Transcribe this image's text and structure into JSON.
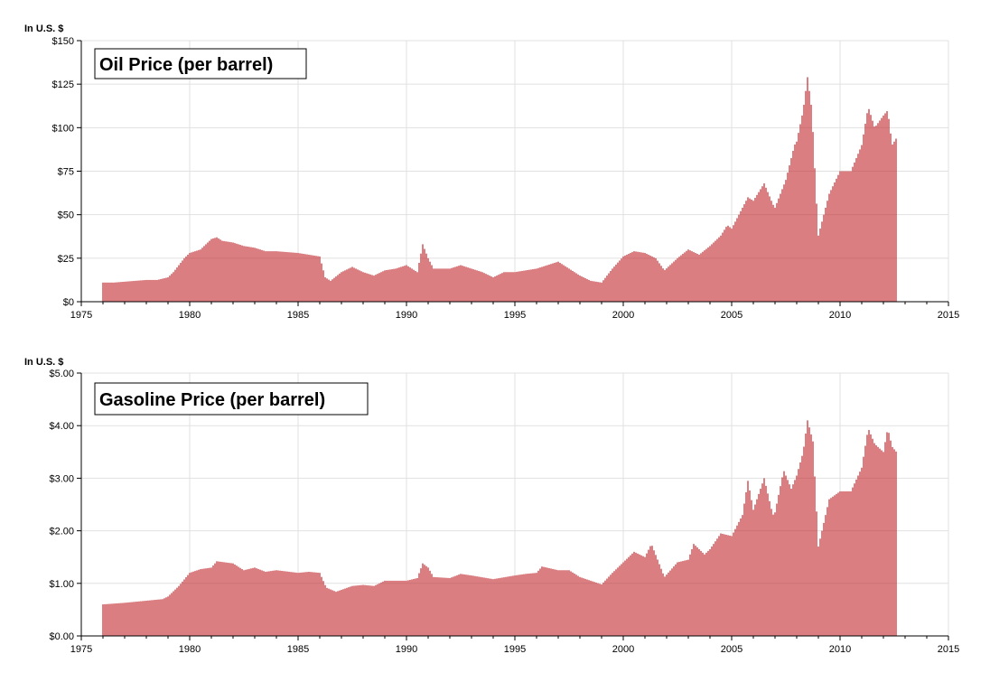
{
  "chart_data": [
    {
      "type": "bar",
      "title": "Oil Price (per barrel)",
      "ylabel": "In U.S. $",
      "xlabel": "",
      "xlim": [
        1975,
        2015
      ],
      "ylim": [
        0,
        150
      ],
      "x_ticks": [
        "1975",
        "1980",
        "1985",
        "1990",
        "1995",
        "2000",
        "2005",
        "2010",
        "2015"
      ],
      "y_ticks": [
        "$0",
        "$25",
        "$50",
        "$75",
        "$100",
        "$125",
        "$150"
      ],
      "grid": true,
      "bar_color": "#c0282d",
      "series": [
        {
          "name": "",
          "points": [
            {
              "x": 1976.0,
              "y": 11
            },
            {
              "x": 1976.5,
              "y": 11
            },
            {
              "x": 1977.0,
              "y": 11.5
            },
            {
              "x": 1977.5,
              "y": 12
            },
            {
              "x": 1978.0,
              "y": 12.5
            },
            {
              "x": 1978.5,
              "y": 12.5
            },
            {
              "x": 1979.0,
              "y": 14
            },
            {
              "x": 1979.25,
              "y": 17
            },
            {
              "x": 1979.5,
              "y": 21
            },
            {
              "x": 1979.75,
              "y": 25
            },
            {
              "x": 1980.0,
              "y": 28
            },
            {
              "x": 1980.5,
              "y": 30
            },
            {
              "x": 1981.0,
              "y": 36
            },
            {
              "x": 1981.25,
              "y": 37
            },
            {
              "x": 1981.5,
              "y": 35
            },
            {
              "x": 1982.0,
              "y": 34
            },
            {
              "x": 1982.5,
              "y": 32
            },
            {
              "x": 1983.0,
              "y": 31
            },
            {
              "x": 1983.5,
              "y": 29
            },
            {
              "x": 1984.0,
              "y": 29
            },
            {
              "x": 1985.0,
              "y": 28
            },
            {
              "x": 1985.5,
              "y": 27
            },
            {
              "x": 1986.0,
              "y": 26
            },
            {
              "x": 1986.25,
              "y": 14
            },
            {
              "x": 1986.5,
              "y": 12
            },
            {
              "x": 1987.0,
              "y": 17
            },
            {
              "x": 1987.5,
              "y": 20
            },
            {
              "x": 1988.0,
              "y": 17
            },
            {
              "x": 1988.5,
              "y": 15
            },
            {
              "x": 1989.0,
              "y": 18
            },
            {
              "x": 1989.5,
              "y": 19
            },
            {
              "x": 1990.0,
              "y": 21
            },
            {
              "x": 1990.5,
              "y": 17
            },
            {
              "x": 1990.75,
              "y": 33
            },
            {
              "x": 1991.0,
              "y": 25
            },
            {
              "x": 1991.25,
              "y": 19
            },
            {
              "x": 1992.0,
              "y": 19
            },
            {
              "x": 1992.5,
              "y": 21
            },
            {
              "x": 1993.0,
              "y": 19
            },
            {
              "x": 1993.5,
              "y": 17
            },
            {
              "x": 1994.0,
              "y": 14
            },
            {
              "x": 1994.5,
              "y": 17
            },
            {
              "x": 1995.0,
              "y": 17
            },
            {
              "x": 1995.5,
              "y": 18
            },
            {
              "x": 1996.0,
              "y": 19
            },
            {
              "x": 1996.5,
              "y": 21
            },
            {
              "x": 1997.0,
              "y": 23
            },
            {
              "x": 1997.5,
              "y": 19
            },
            {
              "x": 1998.0,
              "y": 15
            },
            {
              "x": 1998.5,
              "y": 12
            },
            {
              "x": 1999.0,
              "y": 11
            },
            {
              "x": 1999.5,
              "y": 19
            },
            {
              "x": 2000.0,
              "y": 26
            },
            {
              "x": 2000.5,
              "y": 29
            },
            {
              "x": 2001.0,
              "y": 28
            },
            {
              "x": 2001.5,
              "y": 25
            },
            {
              "x": 2001.9,
              "y": 18
            },
            {
              "x": 2002.5,
              "y": 25
            },
            {
              "x": 2003.0,
              "y": 30
            },
            {
              "x": 2003.5,
              "y": 27
            },
            {
              "x": 2004.0,
              "y": 32
            },
            {
              "x": 2004.5,
              "y": 38
            },
            {
              "x": 2004.8,
              "y": 44
            },
            {
              "x": 2005.0,
              "y": 42
            },
            {
              "x": 2005.5,
              "y": 54
            },
            {
              "x": 2005.75,
              "y": 60
            },
            {
              "x": 2006.0,
              "y": 58
            },
            {
              "x": 2006.5,
              "y": 68
            },
            {
              "x": 2006.9,
              "y": 56
            },
            {
              "x": 2007.0,
              "y": 54
            },
            {
              "x": 2007.5,
              "y": 70
            },
            {
              "x": 2007.9,
              "y": 90
            },
            {
              "x": 2008.0,
              "y": 92
            },
            {
              "x": 2008.3,
              "y": 110
            },
            {
              "x": 2008.5,
              "y": 129
            },
            {
              "x": 2008.7,
              "y": 110
            },
            {
              "x": 2008.9,
              "y": 60
            },
            {
              "x": 2009.0,
              "y": 38
            },
            {
              "x": 2009.5,
              "y": 62
            },
            {
              "x": 2010.0,
              "y": 75
            },
            {
              "x": 2010.5,
              "y": 75
            },
            {
              "x": 2011.0,
              "y": 90
            },
            {
              "x": 2011.3,
              "y": 112
            },
            {
              "x": 2011.6,
              "y": 100
            },
            {
              "x": 2012.0,
              "y": 107
            },
            {
              "x": 2012.2,
              "y": 110
            },
            {
              "x": 2012.4,
              "y": 90
            },
            {
              "x": 2012.6,
              "y": 94
            }
          ]
        }
      ]
    },
    {
      "type": "bar",
      "title": "Gasoline Price (per barrel)",
      "ylabel": "In U.S. $",
      "xlabel": "",
      "xlim": [
        1975,
        2015
      ],
      "ylim": [
        0,
        5
      ],
      "x_ticks": [
        "1975",
        "1980",
        "1985",
        "1990",
        "1995",
        "2000",
        "2005",
        "2010",
        "2015"
      ],
      "y_ticks": [
        "$0.00",
        "$1.00",
        "$2.00",
        "$3.00",
        "$4.00",
        "$5.00"
      ],
      "grid": true,
      "bar_color": "#c0282d",
      "series": [
        {
          "name": "",
          "points": [
            {
              "x": 1976.0,
              "y": 0.6
            },
            {
              "x": 1977.0,
              "y": 0.63
            },
            {
              "x": 1978.0,
              "y": 0.67
            },
            {
              "x": 1978.75,
              "y": 0.7
            },
            {
              "x": 1979.0,
              "y": 0.75
            },
            {
              "x": 1979.5,
              "y": 0.95
            },
            {
              "x": 1980.0,
              "y": 1.2
            },
            {
              "x": 1980.5,
              "y": 1.27
            },
            {
              "x": 1981.0,
              "y": 1.3
            },
            {
              "x": 1981.25,
              "y": 1.42
            },
            {
              "x": 1982.0,
              "y": 1.38
            },
            {
              "x": 1982.5,
              "y": 1.25
            },
            {
              "x": 1983.0,
              "y": 1.3
            },
            {
              "x": 1983.5,
              "y": 1.22
            },
            {
              "x": 1984.0,
              "y": 1.25
            },
            {
              "x": 1985.0,
              "y": 1.2
            },
            {
              "x": 1985.5,
              "y": 1.22
            },
            {
              "x": 1986.0,
              "y": 1.2
            },
            {
              "x": 1986.3,
              "y": 0.92
            },
            {
              "x": 1986.75,
              "y": 0.84
            },
            {
              "x": 1987.5,
              "y": 0.95
            },
            {
              "x": 1988.0,
              "y": 0.97
            },
            {
              "x": 1988.5,
              "y": 0.95
            },
            {
              "x": 1989.0,
              "y": 1.05
            },
            {
              "x": 1989.5,
              "y": 1.05
            },
            {
              "x": 1990.0,
              "y": 1.05
            },
            {
              "x": 1990.5,
              "y": 1.1
            },
            {
              "x": 1990.75,
              "y": 1.38
            },
            {
              "x": 1991.0,
              "y": 1.3
            },
            {
              "x": 1991.25,
              "y": 1.12
            },
            {
              "x": 1992.0,
              "y": 1.1
            },
            {
              "x": 1992.5,
              "y": 1.18
            },
            {
              "x": 1993.0,
              "y": 1.15
            },
            {
              "x": 1994.0,
              "y": 1.08
            },
            {
              "x": 1995.0,
              "y": 1.15
            },
            {
              "x": 1995.5,
              "y": 1.18
            },
            {
              "x": 1996.0,
              "y": 1.2
            },
            {
              "x": 1996.25,
              "y": 1.32
            },
            {
              "x": 1997.0,
              "y": 1.25
            },
            {
              "x": 1997.5,
              "y": 1.25
            },
            {
              "x": 1998.0,
              "y": 1.12
            },
            {
              "x": 1998.5,
              "y": 1.05
            },
            {
              "x": 1999.0,
              "y": 0.98
            },
            {
              "x": 1999.5,
              "y": 1.2
            },
            {
              "x": 2000.0,
              "y": 1.4
            },
            {
              "x": 2000.5,
              "y": 1.6
            },
            {
              "x": 2001.0,
              "y": 1.5
            },
            {
              "x": 2001.3,
              "y": 1.75
            },
            {
              "x": 2001.9,
              "y": 1.12
            },
            {
              "x": 2002.5,
              "y": 1.4
            },
            {
              "x": 2003.0,
              "y": 1.45
            },
            {
              "x": 2003.25,
              "y": 1.75
            },
            {
              "x": 2003.75,
              "y": 1.55
            },
            {
              "x": 2004.0,
              "y": 1.65
            },
            {
              "x": 2004.5,
              "y": 1.95
            },
            {
              "x": 2005.0,
              "y": 1.9
            },
            {
              "x": 2005.5,
              "y": 2.3
            },
            {
              "x": 2005.75,
              "y": 2.95
            },
            {
              "x": 2006.0,
              "y": 2.4
            },
            {
              "x": 2006.5,
              "y": 3.0
            },
            {
              "x": 2006.9,
              "y": 2.3
            },
            {
              "x": 2007.0,
              "y": 2.35
            },
            {
              "x": 2007.4,
              "y": 3.15
            },
            {
              "x": 2007.75,
              "y": 2.8
            },
            {
              "x": 2008.0,
              "y": 3.05
            },
            {
              "x": 2008.3,
              "y": 3.5
            },
            {
              "x": 2008.5,
              "y": 4.1
            },
            {
              "x": 2008.75,
              "y": 3.7
            },
            {
              "x": 2009.0,
              "y": 1.7
            },
            {
              "x": 2009.5,
              "y": 2.6
            },
            {
              "x": 2010.0,
              "y": 2.75
            },
            {
              "x": 2010.5,
              "y": 2.75
            },
            {
              "x": 2011.0,
              "y": 3.2
            },
            {
              "x": 2011.3,
              "y": 3.95
            },
            {
              "x": 2011.6,
              "y": 3.65
            },
            {
              "x": 2012.0,
              "y": 3.5
            },
            {
              "x": 2012.2,
              "y": 3.95
            },
            {
              "x": 2012.4,
              "y": 3.6
            },
            {
              "x": 2012.6,
              "y": 3.5
            }
          ]
        }
      ]
    }
  ]
}
